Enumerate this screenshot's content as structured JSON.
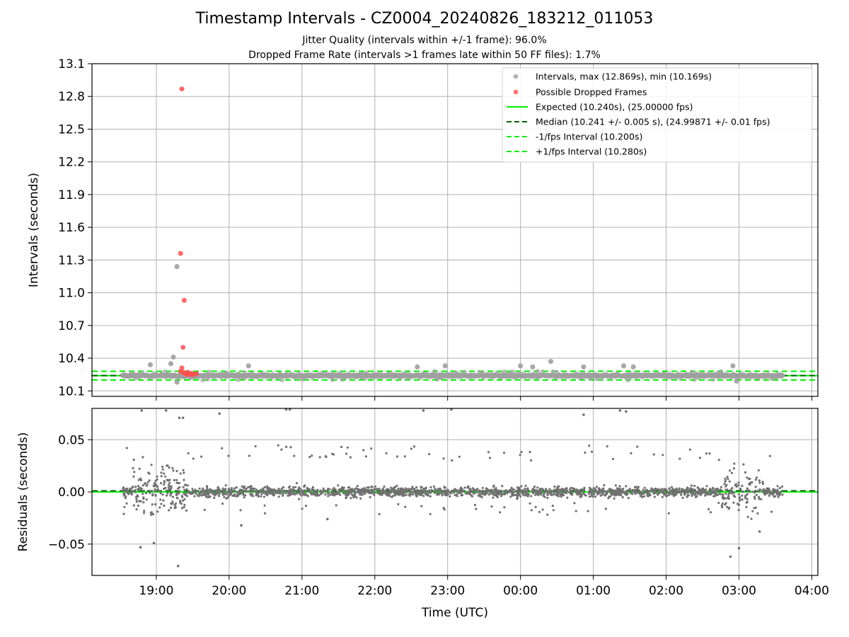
{
  "figure": {
    "title": "Timestamp Intervals - CZ0004_20240826_183212_011053",
    "subtitle_jitter": "Jitter Quality (intervals within +/-1 frame): 96.0%",
    "subtitle_dropped": "Dropped Frame Rate (intervals >1 frames late within 50 FF files): 1.7%"
  },
  "colors": {
    "intervals": "#a0a0a0",
    "dropped": "#ff4d4d",
    "expected": "#00ee00",
    "median": "#006400",
    "fps_bounds": "#00ee00",
    "residuals": "#707070",
    "grid": "#b0b0b0"
  },
  "chart_data": [
    {
      "id": "intervals",
      "type": "scatter",
      "xlabel": "",
      "ylabel": "Intervals (seconds)",
      "ylim": [
        10.05,
        13.1
      ],
      "yticks": [
        "10.1",
        "10.4",
        "10.7",
        "11.0",
        "11.3",
        "11.6",
        "11.9",
        "12.2",
        "12.5",
        "12.8",
        "13.1"
      ],
      "xlim": [
        "18:07",
        "04:05"
      ],
      "grid": true,
      "legend_position": "top-right",
      "legend": [
        "Intervals, max (12.869s), min (10.169s)",
        "Possible Dropped Frames",
        "Expected (10.240s), (25.00000 fps)",
        "Median (10.241 +/- 0.005 s), (24.99871 +/- 0.01 fps)",
        "-1/fps Interval (10.200s)",
        "+1/fps Interval (10.280s)"
      ],
      "lines": {
        "expected": 10.24,
        "median": 10.241,
        "minus_1_fps": 10.2,
        "plus_1_fps": 10.28
      },
      "series": [
        {
          "name": "Intervals, max (12.869s), min (10.169s)",
          "time_range": [
            "18:32",
            "03:36"
          ],
          "typical_range": [
            10.2,
            10.28
          ],
          "outliers": [
            {
              "x": "19:17",
              "y": 11.24
            },
            {
              "x": "19:14",
              "y": 10.41
            },
            {
              "x": "19:12",
              "y": 10.35
            },
            {
              "x": "18:55",
              "y": 10.34
            },
            {
              "x": "20:16",
              "y": 10.33
            },
            {
              "x": "22:35",
              "y": 10.32
            },
            {
              "x": "22:58",
              "y": 10.33
            },
            {
              "x": "00:25",
              "y": 10.37
            },
            {
              "x": "00:00",
              "y": 10.33
            },
            {
              "x": "00:10",
              "y": 10.32
            },
            {
              "x": "00:52",
              "y": 10.32
            },
            {
              "x": "01:25",
              "y": 10.33
            },
            {
              "x": "01:33",
              "y": 10.32
            },
            {
              "x": "02:55",
              "y": 10.33
            },
            {
              "x": "19:17",
              "y": 10.18
            },
            {
              "x": "02:58",
              "y": 10.19
            }
          ]
        },
        {
          "name": "Possible Dropped Frames",
          "points": [
            {
              "x": "19:21",
              "y": 12.869
            },
            {
              "x": "19:20",
              "y": 11.36
            },
            {
              "x": "19:23",
              "y": 10.93
            },
            {
              "x": "19:22",
              "y": 10.5
            },
            {
              "x": "19:21",
              "y": 10.31
            },
            {
              "x": "19:20",
              "y": 10.28
            },
            {
              "x": "19:22",
              "y": 10.27
            },
            {
              "x": "19:24",
              "y": 10.26
            },
            {
              "x": "19:25",
              "y": 10.25
            },
            {
              "x": "19:26",
              "y": 10.27
            },
            {
              "x": "19:27",
              "y": 10.26
            },
            {
              "x": "19:28",
              "y": 10.25
            },
            {
              "x": "19:29",
              "y": 10.26
            },
            {
              "x": "19:31",
              "y": 10.25
            },
            {
              "x": "19:33",
              "y": 10.26
            }
          ]
        }
      ]
    },
    {
      "id": "residuals",
      "type": "scatter",
      "xlabel": "Time (UTC)",
      "ylabel": "Residuals (seconds)",
      "ylim": [
        -0.08,
        0.08
      ],
      "yticks": [
        "−0.05",
        "0.00",
        "0.05"
      ],
      "xlim": [
        "18:07",
        "04:05"
      ],
      "xticks": [
        "19:00",
        "20:00",
        "21:00",
        "22:00",
        "23:00",
        "00:00",
        "01:00",
        "02:00",
        "03:00",
        "04:00"
      ],
      "grid": true,
      "lines": {
        "zero": 0.0,
        "median_residual": 0.001
      },
      "series": [
        {
          "name": "",
          "time_range": [
            "18:32",
            "03:36"
          ],
          "typical_range": [
            -0.01,
            0.01
          ],
          "noisy_windows": [
            {
              "from": "18:40",
              "to": "19:25",
              "range": [
                -0.07,
                0.06
              ]
            },
            {
              "from": "02:45",
              "to": "03:20",
              "range": [
                -0.06,
                0.06
              ]
            }
          ],
          "outliers": [
            {
              "x": "18:48",
              "y": 0.078
            },
            {
              "x": "19:08",
              "y": 0.078
            },
            {
              "x": "19:19",
              "y": 0.071
            },
            {
              "x": "19:22",
              "y": 0.071
            },
            {
              "x": "19:52",
              "y": 0.075
            },
            {
              "x": "20:47",
              "y": 0.079
            },
            {
              "x": "20:50",
              "y": 0.079
            },
            {
              "x": "22:40",
              "y": 0.078
            },
            {
              "x": "23:03",
              "y": 0.079
            },
            {
              "x": "00:52",
              "y": 0.074
            },
            {
              "x": "01:22",
              "y": 0.078
            },
            {
              "x": "01:27",
              "y": 0.077
            },
            {
              "x": "19:18",
              "y": -0.071
            },
            {
              "x": "18:47",
              "y": -0.053
            },
            {
              "x": "18:58",
              "y": -0.049
            },
            {
              "x": "02:53",
              "y": -0.062
            },
            {
              "x": "03:00",
              "y": -0.054
            },
            {
              "x": "03:17",
              "y": -0.038
            },
            {
              "x": "21:21",
              "y": -0.026
            },
            {
              "x": "20:10",
              "y": -0.032
            }
          ]
        }
      ]
    }
  ]
}
